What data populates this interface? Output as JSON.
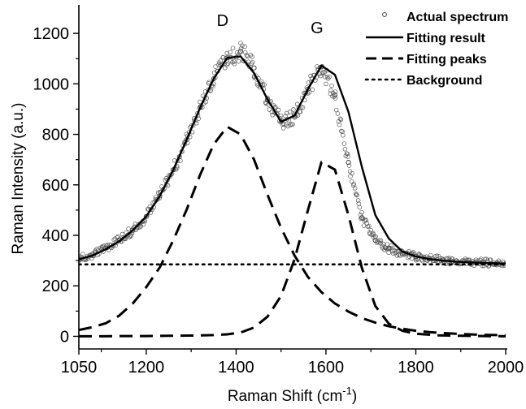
{
  "chart_data": {
    "type": "line",
    "xlabel": "Raman Shift (cm",
    "xlabel_sup": "-1",
    "xlabel_end": ")",
    "ylabel": "Raman Intensity (a.u.)",
    "xlim": [
      1050,
      2000
    ],
    "ylim": [
      -50,
      1300
    ],
    "x_ticks": [
      1050,
      1200,
      1400,
      1600,
      1800,
      2000
    ],
    "y_ticks": [
      0,
      200,
      400,
      600,
      800,
      1000,
      1200
    ],
    "grid": false,
    "legend_position": "top-right",
    "annotations": [
      {
        "text": "D",
        "x": 1370,
        "y": 1230
      },
      {
        "text": "G",
        "x": 1580,
        "y": 1200
      }
    ],
    "series": [
      {
        "name": "Actual spectrum",
        "style": "open-circle-markers",
        "x": [
          1050,
          1080,
          1110,
          1140,
          1170,
          1200,
          1230,
          1260,
          1290,
          1320,
          1350,
          1380,
          1410,
          1440,
          1470,
          1500,
          1530,
          1560,
          1590,
          1620,
          1650,
          1680,
          1710,
          1740,
          1770,
          1800,
          1830,
          1860,
          1890,
          1920,
          1950,
          1980,
          2000
        ],
        "values": [
          305,
          325,
          350,
          382,
          420,
          475,
          556,
          659,
          779,
          906,
          1020,
          1103,
          1129,
          1063,
          938,
          850,
          874,
          979,
          1067,
          956,
          689,
          470,
          380,
          347,
          326,
          316,
          308,
          302,
          298,
          294,
          292,
          290,
          288
        ]
      },
      {
        "name": "Fitting result",
        "style": "solid",
        "x": [
          1050,
          1080,
          1110,
          1140,
          1170,
          1200,
          1230,
          1260,
          1290,
          1320,
          1350,
          1380,
          1410,
          1440,
          1470,
          1500,
          1530,
          1560,
          1590,
          1620,
          1650,
          1680,
          1710,
          1740,
          1770,
          1800,
          1830,
          1860,
          1890,
          1920,
          1950,
          1980,
          2000
        ],
        "values": [
          305,
          320,
          345,
          377,
          420,
          475,
          556,
          659,
          779,
          906,
          1020,
          1103,
          1109,
          1043,
          938,
          850,
          874,
          979,
          1072,
          1036,
          889,
          670,
          480,
          387,
          336,
          316,
          306,
          300,
          296,
          293,
          291,
          289,
          288
        ]
      },
      {
        "name": "Fitting peaks",
        "style": "dashed",
        "x": [
          1050,
          1080,
          1110,
          1140,
          1170,
          1200,
          1230,
          1260,
          1290,
          1320,
          1350,
          1380,
          1410,
          1440,
          1470,
          1500,
          1530,
          1560,
          1590,
          1620,
          1650,
          1680,
          1710,
          1740,
          1770,
          1800,
          1830,
          1860,
          1890,
          1920,
          1950,
          1980,
          2000
        ],
        "values": [
          25,
          36,
          52,
          82,
          130,
          195,
          273,
          380,
          502,
          640,
          760,
          830,
          800,
          700,
          560,
          430,
          320,
          235,
          175,
          130,
          98,
          72,
          54,
          40,
          30,
          22,
          17,
          13,
          10,
          8,
          6,
          5,
          4
        ]
      },
      {
        "name": "",
        "style": "dashed",
        "x": [
          1050,
          1100,
          1150,
          1200,
          1250,
          1300,
          1350,
          1380,
          1410,
          1440,
          1470,
          1500,
          1530,
          1560,
          1590,
          1620,
          1650,
          1680,
          1710,
          1740,
          1770,
          1800,
          1850,
          1900,
          1950,
          2000
        ],
        "values": [
          0,
          0,
          1,
          1,
          2,
          3,
          5,
          8,
          15,
          35,
          78,
          160,
          305,
          500,
          690,
          660,
          480,
          270,
          120,
          50,
          22,
          10,
          4,
          2,
          1,
          0
        ]
      },
      {
        "name": "Background",
        "style": "dotted",
        "x": [
          1050,
          2000
        ],
        "values": [
          285,
          285
        ]
      }
    ]
  }
}
